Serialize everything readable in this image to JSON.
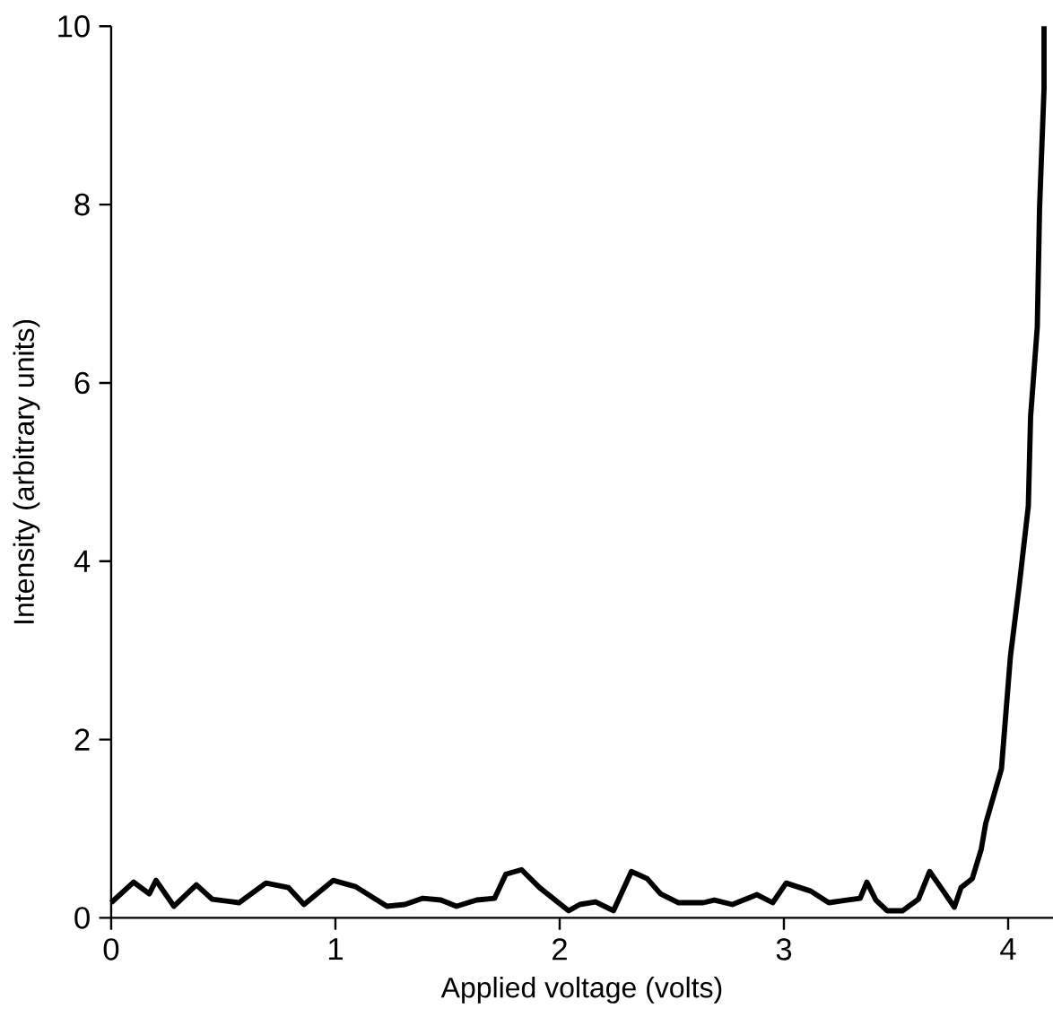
{
  "chart_data": {
    "type": "line",
    "xlabel": "Applied voltage (volts)",
    "ylabel": "Intensity (arbitrary units)",
    "xlim": [
      0,
      4.2
    ],
    "ylim": [
      0,
      10
    ],
    "xticks": [
      0,
      1,
      2,
      3,
      4
    ],
    "yticks": [
      0,
      2,
      4,
      6,
      8,
      10
    ],
    "grid": false,
    "marker": "none",
    "line_style": "solid",
    "series": [
      {
        "color": "#000000",
        "x": [
          0,
          0.1,
          0.17,
          0.2,
          0.28,
          0.38,
          0.45,
          0.57,
          0.69,
          0.79,
          0.86,
          0.99,
          1.09,
          1.23,
          1.31,
          1.39,
          1.47,
          1.54,
          1.63,
          1.71,
          1.76,
          1.83,
          1.91,
          2.04,
          2.09,
          2.16,
          2.24,
          2.32,
          2.39,
          2.45,
          2.53,
          2.64,
          2.69,
          2.77,
          2.88,
          2.95,
          3.01,
          3.12,
          3.2,
          3.28,
          3.34,
          3.37,
          3.41,
          3.46,
          3.53,
          3.6,
          3.65,
          3.7,
          3.76,
          3.79,
          3.84,
          3.88,
          3.9,
          3.97,
          4.01,
          4.05,
          4.09,
          4.1,
          4.13,
          4.14,
          4.16,
          4.16
        ],
        "values": [
          0.17,
          0.4,
          0.27,
          0.42,
          0.13,
          0.37,
          0.21,
          0.17,
          0.39,
          0.34,
          0.15,
          0.42,
          0.35,
          0.13,
          0.15,
          0.22,
          0.2,
          0.13,
          0.2,
          0.22,
          0.49,
          0.54,
          0.34,
          0.08,
          0.15,
          0.18,
          0.08,
          0.52,
          0.44,
          0.27,
          0.17,
          0.17,
          0.2,
          0.15,
          0.26,
          0.17,
          0.39,
          0.3,
          0.17,
          0.2,
          0.22,
          0.4,
          0.2,
          0.08,
          0.08,
          0.21,
          0.52,
          0.34,
          0.12,
          0.34,
          0.44,
          0.77,
          1.06,
          1.67,
          2.93,
          3.74,
          4.62,
          5.62,
          6.63,
          7.96,
          9.3,
          10.0
        ]
      }
    ]
  }
}
